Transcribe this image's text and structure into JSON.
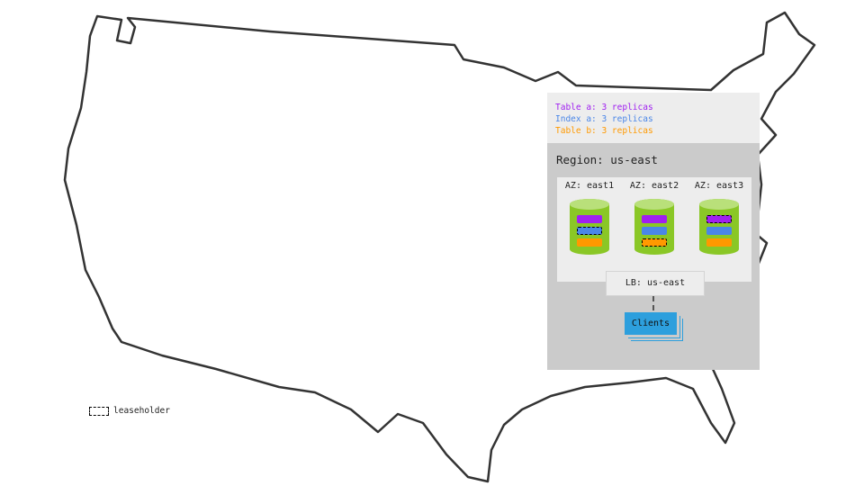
{
  "legend": [
    {
      "text": "Table a: 3 replicas",
      "color": "#a020f0"
    },
    {
      "text": "Index a: 3 replicas",
      "color": "#4a86e8"
    },
    {
      "text": "Table b: 3 replicas",
      "color": "#ff9900"
    }
  ],
  "region": "Region: us-east",
  "zones": [
    {
      "label": "AZ: east1",
      "leaseholder": "index-a"
    },
    {
      "label": "AZ: east2",
      "leaseholder": "table-b"
    },
    {
      "label": "AZ: east3",
      "leaseholder": "table-a"
    }
  ],
  "lb": "LB: us-east",
  "clients": "Clients",
  "leaseholder_legend": "leaseholder"
}
